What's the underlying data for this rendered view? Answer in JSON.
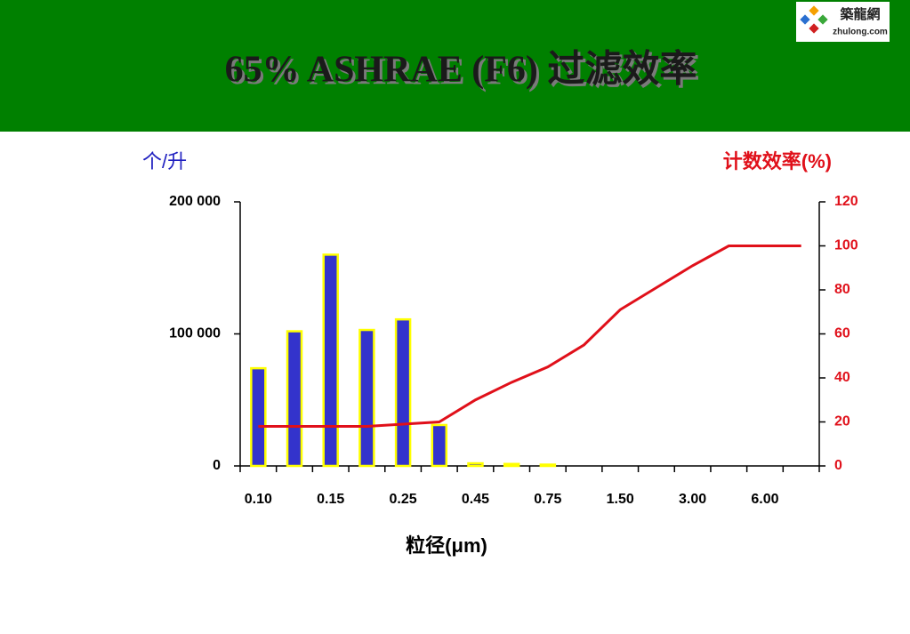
{
  "logo": {
    "name": "築龍網",
    "url": "zhulong.com"
  },
  "chart_data": {
    "type": "bar",
    "title": "65% ASHRAE (F6) 过滤效率",
    "ylabel": "个/升",
    "y2label": "计数效率(%)",
    "xlabel": "粒径(μm)",
    "categories": [
      "0.10",
      null,
      "0.15",
      null,
      "0.25",
      null,
      "0.45",
      null,
      "0.75",
      null,
      "1.50",
      null,
      "3.00",
      null,
      "6.00",
      null
    ],
    "series": [
      {
        "type": "bar",
        "color": "#3333cc",
        "edge_color": "#ffff00",
        "values": [
          74000,
          102000,
          160000,
          103000,
          111000,
          31000,
          2000,
          1500,
          1000,
          0,
          0,
          0,
          0,
          0,
          0,
          0
        ]
      },
      {
        "type": "line",
        "axis": "y2",
        "color": "#e0101a",
        "values": [
          18,
          18,
          18,
          18,
          19,
          20,
          30,
          38,
          45,
          55,
          71,
          81,
          91,
          100,
          100,
          100
        ]
      }
    ],
    "ylim": [
      0,
      200000
    ],
    "yticks": [
      0,
      {
        "value": 100000,
        "label": "100 000"
      },
      {
        "value": 200000,
        "label": "200 000"
      }
    ],
    "y2lim": [
      0,
      120
    ],
    "y2ticks": [
      0,
      20,
      40,
      60,
      80,
      100,
      120
    ]
  }
}
